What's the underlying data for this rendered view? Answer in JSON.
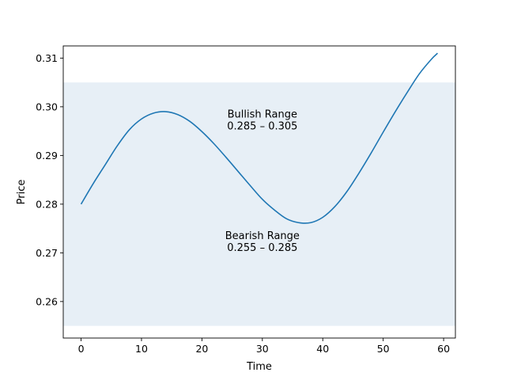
{
  "chart_data": {
    "type": "line",
    "title": "",
    "xlabel": "Time",
    "ylabel": "Price",
    "xlim": [
      -2.95,
      61.95
    ],
    "ylim": [
      0.2525,
      0.3125
    ],
    "xticks": [
      0,
      10,
      20,
      30,
      40,
      50,
      60
    ],
    "yticks": [
      0.26,
      0.27,
      0.28,
      0.29,
      0.3,
      0.31
    ],
    "ytick_labels": [
      "0.26",
      "0.27",
      "0.28",
      "0.29",
      "0.30",
      "0.31"
    ],
    "grid": false,
    "legend": "none",
    "series": [
      {
        "color": "#1f77b4",
        "x": [
          0,
          2,
          4,
          6,
          8,
          10,
          12,
          14,
          16,
          18,
          20,
          22,
          24,
          26,
          28,
          30,
          32,
          34,
          36,
          38,
          40,
          42,
          44,
          46,
          48,
          50,
          52,
          54,
          56,
          58,
          59
        ],
        "y": [
          0.28,
          0.2842,
          0.2881,
          0.292,
          0.2953,
          0.2975,
          0.2987,
          0.299,
          0.2984,
          0.297,
          0.2949,
          0.2924,
          0.2896,
          0.2867,
          0.2838,
          0.281,
          0.2788,
          0.277,
          0.2762,
          0.2762,
          0.2773,
          0.2795,
          0.2826,
          0.2864,
          0.2905,
          0.2948,
          0.299,
          0.303,
          0.3068,
          0.3098,
          0.311
        ]
      }
    ],
    "bands": [
      {
        "from": 0.255,
        "to": 0.305,
        "color": "#e7eff6"
      }
    ],
    "annotations": [
      {
        "id": "bullish",
        "lines": [
          "Bullish Range",
          "0.285 – 0.305"
        ],
        "x": 30,
        "y": 0.2965
      },
      {
        "id": "bearish",
        "lines": [
          "Bearish Range",
          "0.255 – 0.285"
        ],
        "x": 30,
        "y": 0.2715
      }
    ]
  }
}
